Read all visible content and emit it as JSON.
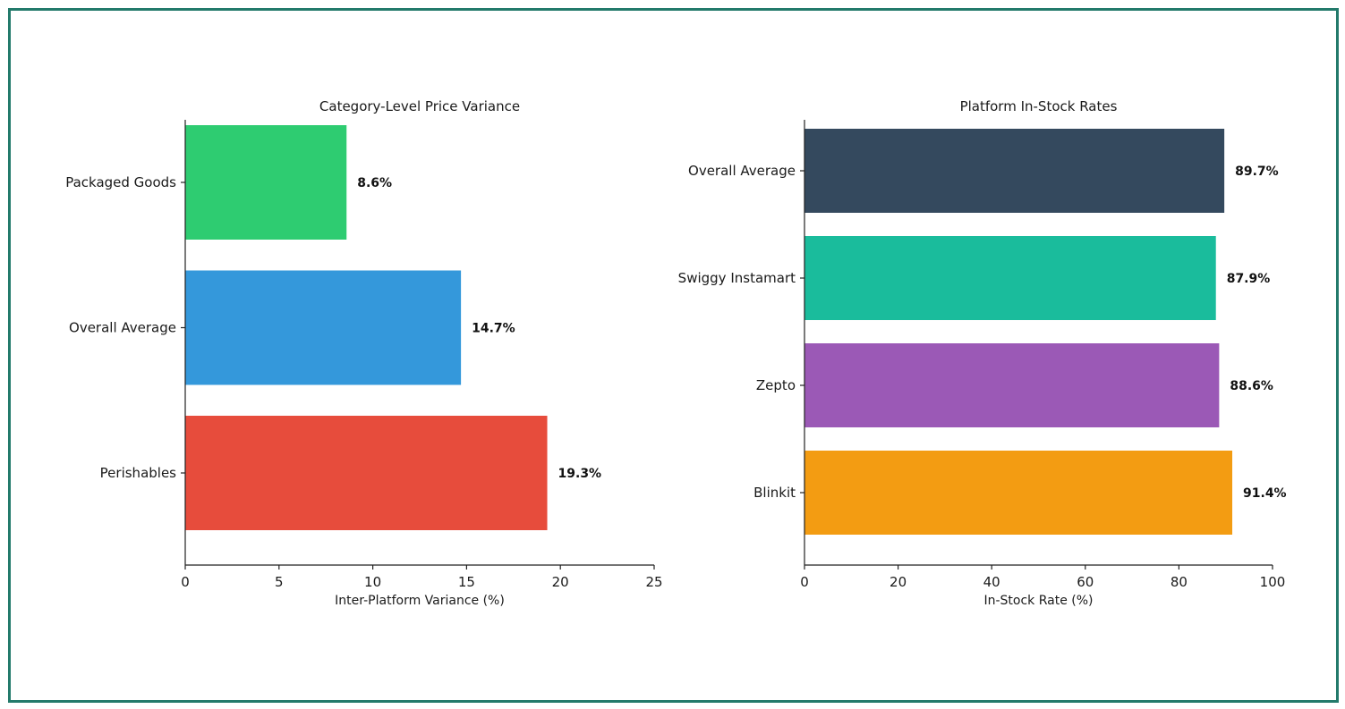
{
  "chart_data": [
    {
      "type": "bar",
      "orientation": "horizontal",
      "title": "Category-Level Price Variance",
      "xlabel": "Inter-Platform Variance (%)",
      "ylabel": "",
      "xlim": [
        0,
        25
      ],
      "xticks": [
        0,
        5,
        10,
        15,
        20,
        25
      ],
      "categories": [
        "Packaged Goods",
        "Overall Average",
        "Perishables"
      ],
      "values": [
        8.6,
        14.7,
        19.3
      ],
      "value_labels": [
        "8.6%",
        "14.7%",
        "19.3%"
      ],
      "colors": [
        "#2ecc71",
        "#3498db",
        "#e74c3c"
      ],
      "grid": false
    },
    {
      "type": "bar",
      "orientation": "horizontal",
      "title": "Platform In-Stock Rates",
      "xlabel": "In-Stock Rate (%)",
      "ylabel": "",
      "xlim": [
        0,
        100
      ],
      "xticks": [
        0,
        20,
        40,
        60,
        80,
        100
      ],
      "categories": [
        "Overall Average",
        "Swiggy Instamart",
        "Zepto",
        "Blinkit"
      ],
      "values": [
        89.7,
        87.9,
        88.6,
        91.4
      ],
      "value_labels": [
        "89.7%",
        "87.9%",
        "88.6%",
        "91.4%"
      ],
      "colors": [
        "#34495e",
        "#1abc9c",
        "#9b59b6",
        "#f39c12"
      ],
      "grid": false
    }
  ],
  "frame": {
    "border_color": "#237a6b"
  }
}
